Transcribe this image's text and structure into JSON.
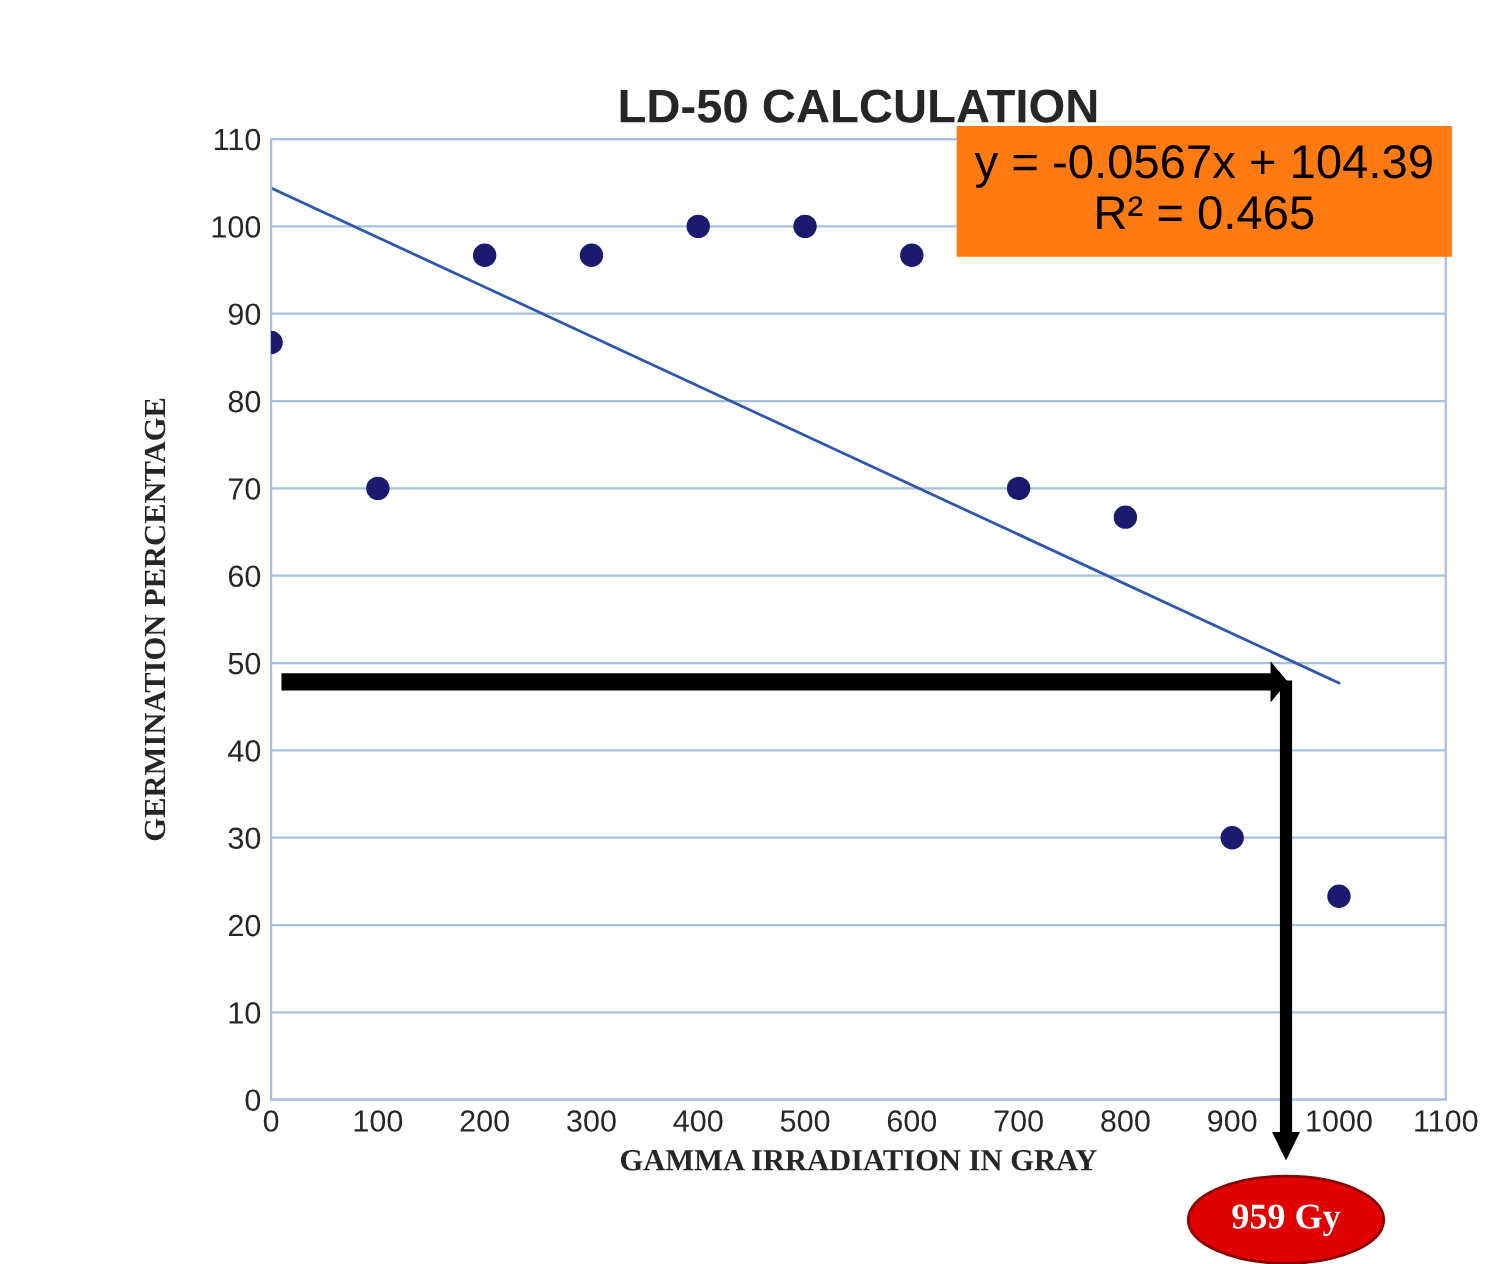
{
  "chart_data": {
    "type": "scatter",
    "title": "LD-50 CALCULATION",
    "xlabel": "GAMMA IRRADIATION IN GRAY",
    "ylabel": "GERMINATION PERCENTAGE",
    "x": [
      0,
      100,
      200,
      300,
      400,
      500,
      600,
      700,
      800,
      900,
      1000
    ],
    "series": [
      {
        "color": "#1a1a6e",
        "marker": "circle",
        "values": [
          86.7,
          70,
          96.7,
          96.7,
          100,
          100,
          96.7,
          70,
          66.7,
          30,
          23.3
        ]
      },
      {
        "type": "line",
        "color": "#2e55b0",
        "marker": "none",
        "x": [
          0,
          1000
        ],
        "values": [
          104.4,
          47.7
        ]
      }
    ],
    "annotations": [
      "y = -0.0567x + 104.39\nR² = 0.465",
      "959 Gy"
    ],
    "xlim": [
      0,
      1100
    ],
    "ylim": [
      0,
      110
    ],
    "xticks": [
      0,
      100,
      200,
      300,
      400,
      500,
      600,
      700,
      800,
      900,
      1000,
      1100
    ],
    "yticks": [
      0,
      10,
      20,
      30,
      40,
      50,
      60,
      70,
      80,
      90,
      100,
      110
    ],
    "grid": "y",
    "legend": false
  }
}
